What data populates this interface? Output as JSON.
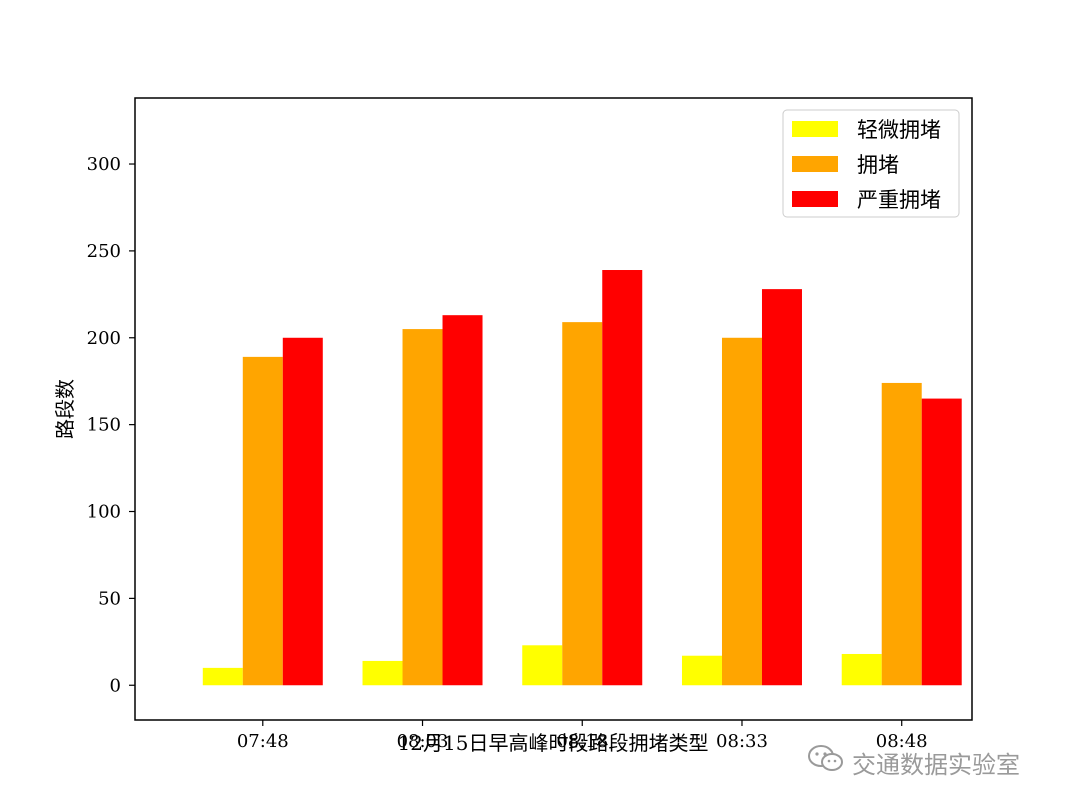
{
  "chart_data": {
    "type": "bar",
    "categories": [
      "07:48",
      "08:03",
      "08:18",
      "08:33",
      "08:48"
    ],
    "series": [
      {
        "name": "轻微拥堵",
        "color": "#ffff00",
        "values": [
          10,
          14,
          23,
          17,
          18
        ]
      },
      {
        "name": "拥堵",
        "color": "#ffa500",
        "values": [
          189,
          205,
          209,
          200,
          174
        ]
      },
      {
        "name": "严重拥堵",
        "color": "#ff0000",
        "values": [
          200,
          213,
          239,
          228,
          165
        ]
      }
    ],
    "title": "",
    "xlabel": "12月15日早高峰时段路段拥堵类型",
    "ylabel": "路段数",
    "ylim": [
      -20,
      338
    ],
    "yticks": [
      0,
      50,
      100,
      150,
      200,
      250,
      300
    ],
    "grid": false,
    "legend_position": "top-right"
  },
  "watermark": {
    "text": "交通数据实验室",
    "icon": "wechat-icon"
  }
}
